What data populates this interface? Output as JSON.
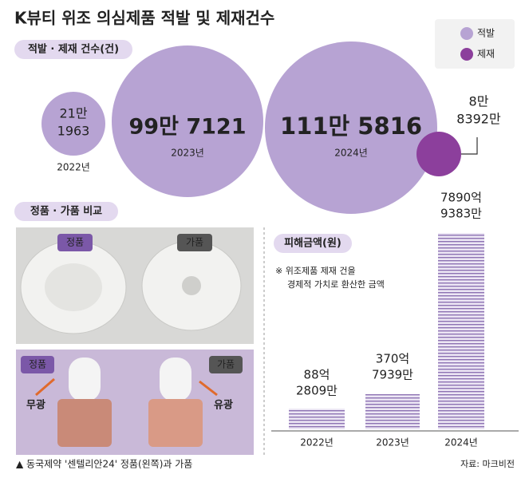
{
  "header": {
    "title": "K뷰티 위조 의심제품 적발 및 제재건수"
  },
  "legend": {
    "items": [
      "적발",
      "제재"
    ]
  },
  "cases": {
    "tag": "적발 · 제재 건수(건)",
    "years": [
      {
        "lines": [
          "21만",
          "1963"
        ],
        "year": "2022년"
      },
      {
        "lines": [
          "99만 7121"
        ],
        "year": "2023년"
      },
      {
        "lines": [
          "111만 5816"
        ],
        "year": "2024년"
      }
    ],
    "sanction": {
      "lines": [
        "8만",
        "8392만"
      ]
    }
  },
  "comparison": {
    "tag": "정품 · 가품 비교",
    "top_labels": [
      "정품",
      "가품"
    ],
    "bottom_labels": [
      "정품",
      "가품"
    ],
    "finish": [
      "무광",
      "유광"
    ],
    "caption": "▲ 동국제약 '센텔리안24' 정품(왼쪽)과 가품"
  },
  "damage": {
    "tag": "피해금액(원)",
    "note": [
      "※ 위조제품 제재 건을",
      "경제적 가치로 환산한 금액"
    ],
    "bars": [
      {
        "lines": [
          "88억",
          "2809만"
        ],
        "year": "2022년"
      },
      {
        "lines": [
          "370억",
          "7939만"
        ],
        "year": "2023년"
      },
      {
        "lines": [
          "7890억",
          "9383만"
        ],
        "year": "2024년"
      }
    ],
    "source": "자료: 마크비전"
  }
}
